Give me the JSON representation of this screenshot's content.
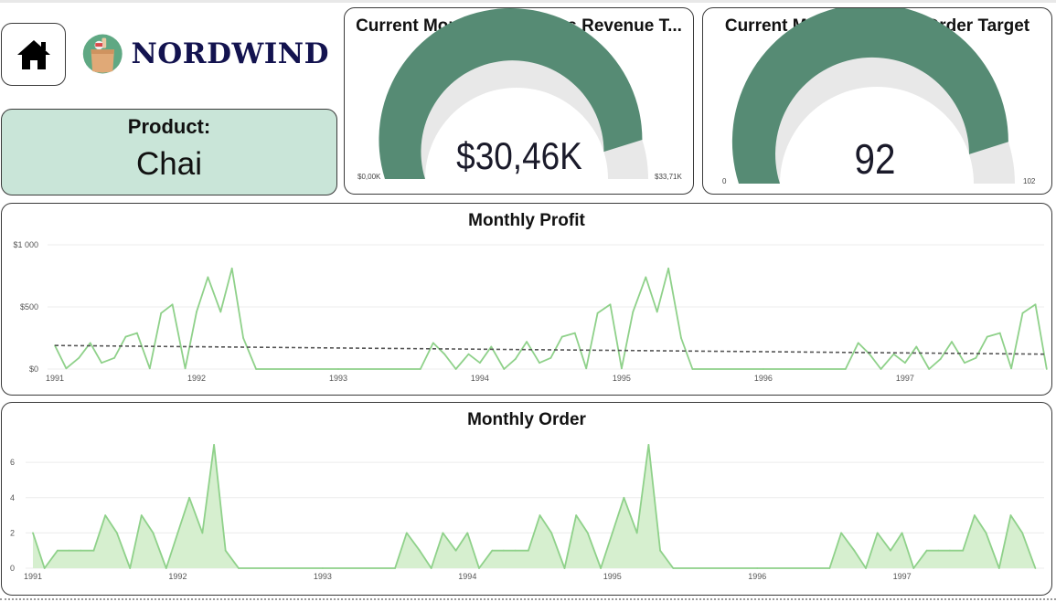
{
  "nav": {
    "home_icon": "home-icon"
  },
  "brand": {
    "name": "NORDWIND",
    "logo_icon": "grocery-bag-logo"
  },
  "product": {
    "label": "Product:",
    "value": "Chai"
  },
  "revenue_gauge": {
    "title": "Current Month Revenue vs Revenue T...",
    "value_label": "$30,46K",
    "min_label": "$0,00K",
    "max_label": "$33,71K",
    "value": 30.46,
    "min": 0,
    "max": 33.71,
    "fill_color": "#568b74",
    "track_color": "#e8e8e8"
  },
  "order_gauge": {
    "title": "Current Month Order vs Order Target",
    "value_label": "92",
    "min_label": "0",
    "max_label": "102",
    "value": 92,
    "min": 0,
    "max": 102,
    "fill_color": "#568b74",
    "track_color": "#e8e8e8"
  },
  "chart_data": [
    {
      "type": "line",
      "title": "Monthly Profit",
      "xlabel": "",
      "ylabel": "",
      "x_ticks": [
        "1991",
        "1992",
        "1993",
        "1994",
        "1995",
        "1996",
        "1997"
      ],
      "y_ticks": [
        "$0",
        "$500",
        "$1 000"
      ],
      "ylim": [
        0,
        1000
      ],
      "grid": true,
      "series": [
        {
          "color": "#8fd18a",
          "values": [
            [
              1991.0,
              190
            ],
            [
              1991.08,
              5
            ],
            [
              1991.17,
              90
            ],
            [
              1991.25,
              210
            ],
            [
              1991.33,
              50
            ],
            [
              1991.42,
              90
            ],
            [
              1991.5,
              260
            ],
            [
              1991.58,
              290
            ],
            [
              1991.67,
              5
            ],
            [
              1991.75,
              450
            ],
            [
              1991.83,
              520
            ],
            [
              1991.92,
              5
            ],
            [
              1992.0,
              460
            ],
            [
              1992.08,
              740
            ],
            [
              1992.17,
              460
            ],
            [
              1992.25,
              810
            ],
            [
              1992.33,
              250
            ],
            [
              1992.42,
              0
            ],
            [
              1993.0,
              0
            ],
            [
              1993.58,
              0
            ],
            [
              1993.67,
              210
            ],
            [
              1993.75,
              120
            ],
            [
              1993.83,
              0
            ],
            [
              1993.92,
              120
            ],
            [
              1994.0,
              50
            ],
            [
              1994.08,
              180
            ],
            [
              1994.17,
              0
            ],
            [
              1994.25,
              80
            ],
            [
              1994.33,
              220
            ],
            [
              1994.42,
              50
            ],
            [
              1994.5,
              90
            ],
            [
              1994.58,
              260
            ],
            [
              1994.67,
              290
            ],
            [
              1994.75,
              5
            ],
            [
              1994.83,
              450
            ],
            [
              1994.92,
              520
            ],
            [
              1995.0,
              5
            ],
            [
              1995.08,
              460
            ],
            [
              1995.17,
              740
            ],
            [
              1995.25,
              460
            ],
            [
              1995.33,
              810
            ],
            [
              1995.42,
              250
            ],
            [
              1995.5,
              0
            ],
            [
              1996.0,
              0
            ],
            [
              1996.58,
              0
            ],
            [
              1996.67,
              210
            ],
            [
              1996.75,
              120
            ],
            [
              1996.83,
              0
            ],
            [
              1996.92,
              120
            ],
            [
              1997.0,
              50
            ],
            [
              1997.08,
              180
            ],
            [
              1997.17,
              0
            ],
            [
              1997.25,
              80
            ],
            [
              1997.33,
              220
            ],
            [
              1997.42,
              50
            ],
            [
              1997.5,
              90
            ],
            [
              1997.58,
              260
            ],
            [
              1997.67,
              290
            ],
            [
              1997.75,
              5
            ],
            [
              1997.83,
              450
            ],
            [
              1997.92,
              520
            ],
            [
              1998.0,
              0
            ]
          ]
        },
        {
          "kind": "trend",
          "color": "#555555",
          "values": [
            [
              1991.0,
              190
            ],
            [
              1998.0,
              120
            ]
          ]
        }
      ]
    },
    {
      "type": "area",
      "title": "Monthly Order",
      "xlabel": "",
      "ylabel": "",
      "x_ticks": [
        "1991",
        "1992",
        "1993",
        "1994",
        "1995",
        "1996",
        "1997"
      ],
      "y_ticks": [
        "0",
        "2",
        "4",
        "6"
      ],
      "ylim": [
        0,
        7.2
      ],
      "grid": true,
      "series": [
        {
          "color": "#8fd18a",
          "fill": "#d6efcf",
          "values": [
            [
              1991.0,
              2
            ],
            [
              1991.08,
              0
            ],
            [
              1991.17,
              1
            ],
            [
              1991.25,
              1
            ],
            [
              1991.33,
              1
            ],
            [
              1991.42,
              1
            ],
            [
              1991.5,
              3
            ],
            [
              1991.58,
              2
            ],
            [
              1991.67,
              0
            ],
            [
              1991.75,
              3
            ],
            [
              1991.83,
              2
            ],
            [
              1991.92,
              0
            ],
            [
              1992.0,
              2
            ],
            [
              1992.08,
              4
            ],
            [
              1992.17,
              2
            ],
            [
              1992.25,
              7
            ],
            [
              1992.33,
              1
            ],
            [
              1992.42,
              0
            ],
            [
              1993.0,
              0
            ],
            [
              1993.5,
              0
            ],
            [
              1993.58,
              2
            ],
            [
              1993.67,
              1
            ],
            [
              1993.75,
              0
            ],
            [
              1993.83,
              2
            ],
            [
              1993.92,
              1
            ],
            [
              1994.0,
              2
            ],
            [
              1994.08,
              0
            ],
            [
              1994.17,
              1
            ],
            [
              1994.25,
              1
            ],
            [
              1994.33,
              1
            ],
            [
              1994.42,
              1
            ],
            [
              1994.5,
              3
            ],
            [
              1994.58,
              2
            ],
            [
              1994.67,
              0
            ],
            [
              1994.75,
              3
            ],
            [
              1994.83,
              2
            ],
            [
              1994.92,
              0
            ],
            [
              1995.0,
              2
            ],
            [
              1995.08,
              4
            ],
            [
              1995.17,
              2
            ],
            [
              1995.25,
              7
            ],
            [
              1995.33,
              1
            ],
            [
              1995.42,
              0
            ],
            [
              1996.0,
              0
            ],
            [
              1996.5,
              0
            ],
            [
              1996.58,
              2
            ],
            [
              1996.67,
              1
            ],
            [
              1996.75,
              0
            ],
            [
              1996.83,
              2
            ],
            [
              1996.92,
              1
            ],
            [
              1997.0,
              2
            ],
            [
              1997.08,
              0
            ],
            [
              1997.17,
              1
            ],
            [
              1997.25,
              1
            ],
            [
              1997.33,
              1
            ],
            [
              1997.42,
              1
            ],
            [
              1997.5,
              3
            ],
            [
              1997.58,
              2
            ],
            [
              1997.67,
              0
            ],
            [
              1997.75,
              3
            ],
            [
              1997.83,
              2
            ],
            [
              1997.92,
              0
            ]
          ]
        }
      ]
    }
  ]
}
